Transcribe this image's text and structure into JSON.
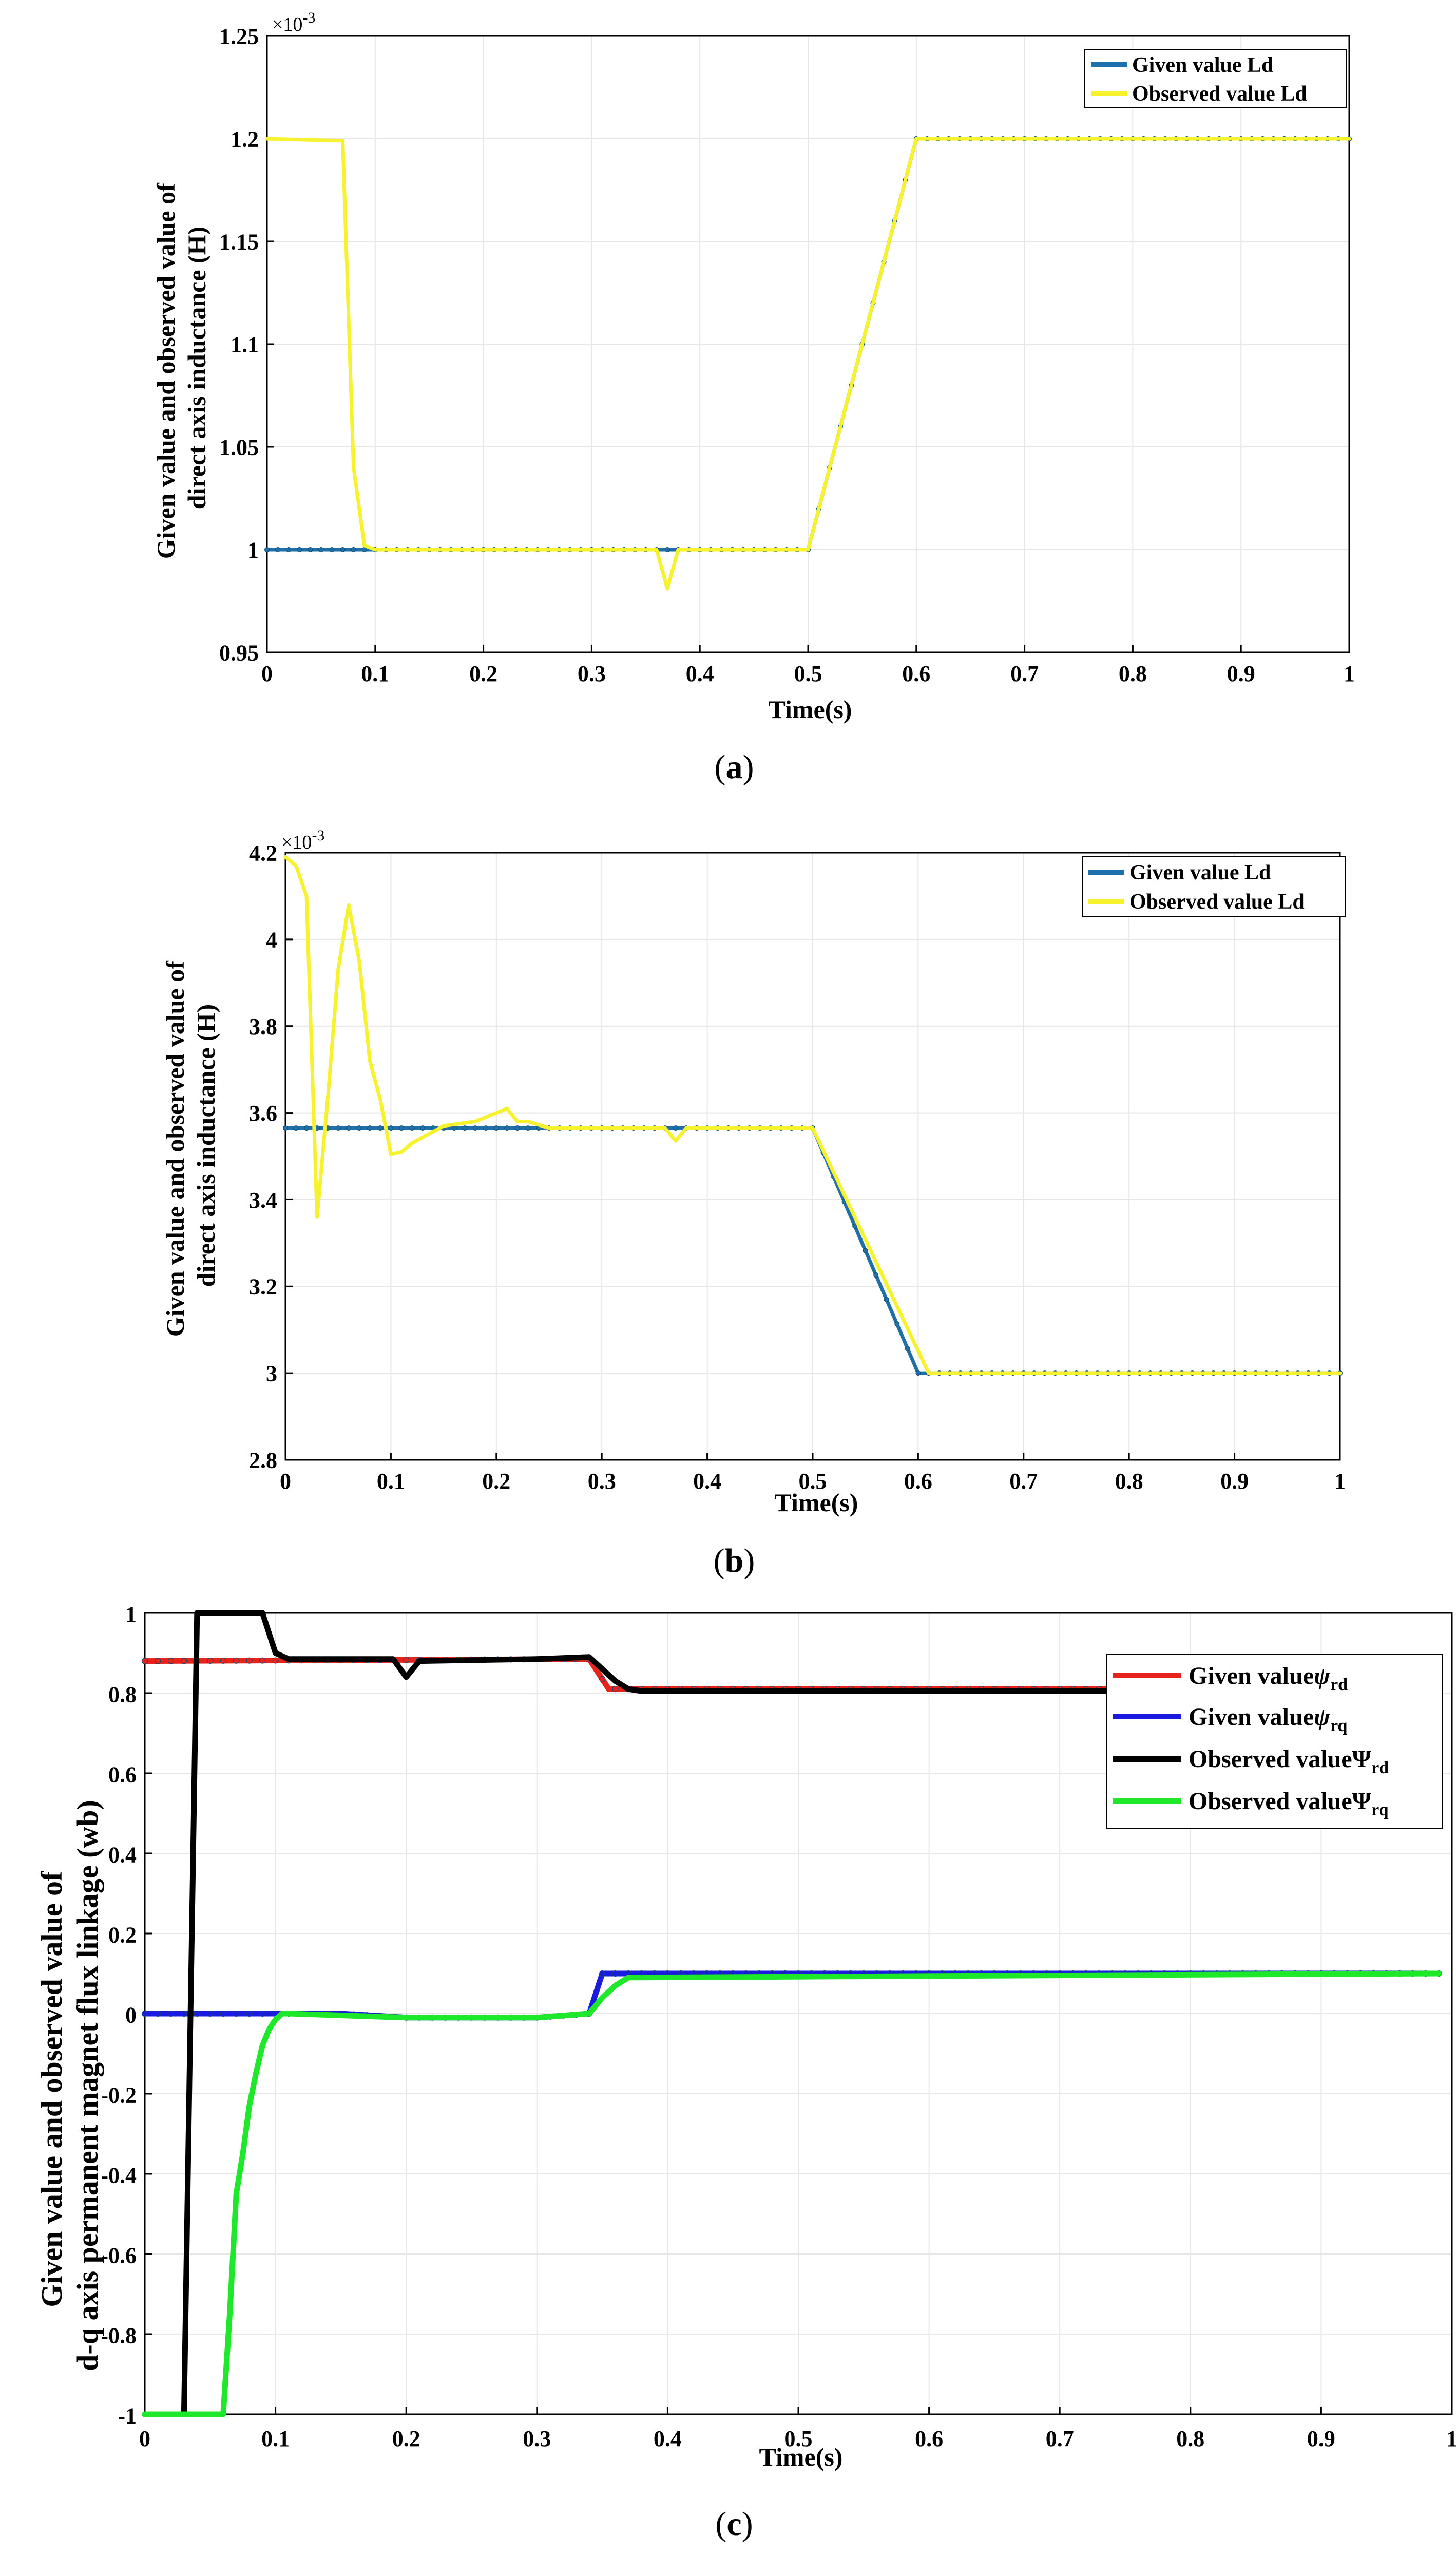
{
  "chart_data": [
    {
      "id": "a",
      "type": "line",
      "caption_letter": "a",
      "xlabel": "Time(s)",
      "ylabel_lines": [
        "Given value and observed value of",
        "direct axis inductance (H)"
      ],
      "exponent": "×10",
      "exponent_power": "-3",
      "xlim": [
        0,
        1
      ],
      "ylim": [
        0.95,
        1.25
      ],
      "xticks": [
        0,
        0.1,
        0.2,
        0.3,
        0.4,
        0.5,
        0.6,
        0.7,
        0.8,
        0.9,
        1
      ],
      "xtick_labels": [
        "0",
        "0.1",
        "0.2",
        "0.3",
        "0.4",
        "0.5",
        "0.6",
        "0.7",
        "0.8",
        "0.9",
        "1"
      ],
      "yticks": [
        0.95,
        1,
        1.05,
        1.1,
        1.15,
        1.2,
        1.25
      ],
      "ytick_labels": [
        "0.95",
        "1",
        "1.05",
        "1.1",
        "1.15",
        "1.2",
        "1.25"
      ],
      "legend_position": "top-right",
      "series": [
        {
          "name": "Given value Ld",
          "color": "#1f6fa8",
          "marker": true,
          "x": [
            0,
            0.09,
            0.1,
            0.35,
            0.38,
            0.4,
            0.5,
            0.6,
            1
          ],
          "y": [
            1.0,
            1.0,
            1.0,
            1.0,
            1.0,
            1.0,
            1.0,
            1.2,
            1.2
          ]
        },
        {
          "name": "Observed value Ld",
          "color": "#f7f22e",
          "marker": false,
          "x": [
            0,
            0.07,
            0.08,
            0.09,
            0.1,
            0.36,
            0.37,
            0.38,
            0.5,
            0.6,
            1
          ],
          "y": [
            1.2,
            1.199,
            1.04,
            1.002,
            1.0,
            1.0,
            0.981,
            1.0,
            1.0,
            1.2,
            1.2
          ]
        }
      ]
    },
    {
      "id": "b",
      "type": "line",
      "caption_letter": "b",
      "xlabel": "Time(s)",
      "ylabel_lines": [
        "Given value and observed value of",
        "direct axis inductance (H)"
      ],
      "exponent": "×10",
      "exponent_power": "-3",
      "xlim": [
        0,
        1
      ],
      "ylim": [
        2.8,
        4.2
      ],
      "xticks": [
        0,
        0.1,
        0.2,
        0.3,
        0.4,
        0.5,
        0.6,
        0.7,
        0.8,
        0.9,
        1
      ],
      "xtick_labels": [
        "0",
        "0.1",
        "0.2",
        "0.3",
        "0.4",
        "0.5",
        "0.6",
        "0.7",
        "0.8",
        "0.9",
        "1"
      ],
      "yticks": [
        2.8,
        3.0,
        3.2,
        3.4,
        3.6,
        3.8,
        4.0,
        4.2
      ],
      "ytick_labels": [
        "2.8",
        "3",
        "3.2",
        "3.4",
        "3.6",
        "3.8",
        "4",
        "4.2"
      ],
      "legend_position": "top-right",
      "series": [
        {
          "name": "Given value Ld",
          "color": "#1f6fa8",
          "marker": true,
          "x": [
            0,
            0.1,
            0.2,
            0.3,
            0.4,
            0.5,
            0.6,
            1
          ],
          "y": [
            3.565,
            3.565,
            3.565,
            3.565,
            3.565,
            3.565,
            3.0,
            3.0
          ]
        },
        {
          "name": "Observed value Ld",
          "color": "#f7f22e",
          "marker": false,
          "x": [
            0,
            0.01,
            0.02,
            0.03,
            0.04,
            0.05,
            0.06,
            0.07,
            0.08,
            0.09,
            0.1,
            0.11,
            0.12,
            0.15,
            0.18,
            0.2,
            0.21,
            0.22,
            0.23,
            0.25,
            0.36,
            0.37,
            0.38,
            0.5,
            0.61,
            1
          ],
          "y": [
            4.19,
            4.17,
            4.1,
            3.36,
            3.63,
            3.93,
            4.08,
            3.95,
            3.72,
            3.63,
            3.505,
            3.51,
            3.53,
            3.57,
            3.58,
            3.6,
            3.61,
            3.58,
            3.58,
            3.565,
            3.565,
            3.535,
            3.565,
            3.565,
            3.0,
            3.0
          ]
        }
      ]
    },
    {
      "id": "c",
      "type": "line",
      "caption_letter": "c",
      "xlabel": "Time(s)",
      "ylabel_lines": [
        "Given value and observed value of",
        "d-q axis permanent magnet flux linkage (wb)"
      ],
      "xlim": [
        0,
        1
      ],
      "ylim": [
        -1,
        1
      ],
      "xticks": [
        0,
        0.1,
        0.2,
        0.3,
        0.4,
        0.5,
        0.6,
        0.7,
        0.8,
        0.9,
        1
      ],
      "xtick_labels": [
        "0",
        "0.1",
        "0.2",
        "0.3",
        "0.4",
        "0.5",
        "0.6",
        "0.7",
        "0.8",
        "0.9",
        "1"
      ],
      "yticks": [
        -1,
        -0.8,
        -0.6,
        -0.4,
        -0.2,
        0,
        0.2,
        0.4,
        0.6,
        0.8,
        1
      ],
      "ytick_labels": [
        "-1",
        "-0.8",
        "-0.6",
        "-0.4",
        "-0.2",
        "0",
        "0.2",
        "0.4",
        "0.6",
        "0.8",
        "1"
      ],
      "legend_position": "top-right",
      "series": [
        {
          "name": "Given value",
          "symbol": "ψ",
          "subscript": "rd",
          "color": "#e8231c",
          "marker": true,
          "x": [
            0,
            0.34,
            0.355,
            0.99
          ],
          "y": [
            0.88,
            0.885,
            0.81,
            0.81
          ]
        },
        {
          "name": "Given value",
          "symbol": "ψ",
          "subscript": "rq",
          "color": "#1a1ae0",
          "marker": true,
          "x": [
            0,
            0.1,
            0.15,
            0.2,
            0.3,
            0.34,
            0.35,
            0.99
          ],
          "y": [
            0.0,
            0.0,
            0.0,
            -0.01,
            -0.01,
            0.0,
            0.1,
            0.1
          ]
        },
        {
          "name": "Observed value",
          "symbol": "Ψ",
          "subscript": "rd",
          "color": "#000000",
          "marker": false,
          "x": [
            0,
            0.03,
            0.04,
            0.09,
            0.1,
            0.11,
            0.19,
            0.2,
            0.21,
            0.3,
            0.34,
            0.36,
            0.37,
            0.38,
            0.99
          ],
          "y": [
            -1,
            -1,
            1.0,
            1.0,
            0.9,
            0.885,
            0.885,
            0.84,
            0.88,
            0.885,
            0.89,
            0.83,
            0.81,
            0.805,
            0.805
          ]
        },
        {
          "name": "Observed value",
          "symbol": "Ψ",
          "subscript": "rq",
          "color": "#1ee82a",
          "marker": false,
          "x": [
            0,
            0.06,
            0.065,
            0.07,
            0.075,
            0.08,
            0.085,
            0.09,
            0.095,
            0.1,
            0.105,
            0.11,
            0.2,
            0.3,
            0.34,
            0.35,
            0.36,
            0.37,
            0.99
          ],
          "y": [
            -1,
            -1,
            -0.75,
            -0.45,
            -0.35,
            -0.23,
            -0.15,
            -0.08,
            -0.04,
            -0.015,
            0,
            0,
            -0.01,
            -0.01,
            0.0,
            0.04,
            0.07,
            0.09,
            0.1
          ]
        }
      ]
    }
  ]
}
